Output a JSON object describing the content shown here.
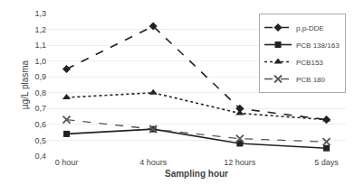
{
  "chart_data": {
    "type": "line",
    "categories": [
      "0 hour",
      "4 hours",
      "12 hours",
      "5 days"
    ],
    "series": [
      {
        "name": "p,p-DDE",
        "values": [
          0.95,
          1.22,
          0.7,
          0.63
        ],
        "color": "#222222",
        "marker": "diamond",
        "line_style": "dash"
      },
      {
        "name": "PCB 138/163",
        "values": [
          0.54,
          0.57,
          0.48,
          0.45
        ],
        "color": "#222222",
        "marker": "square",
        "line_style": "solid"
      },
      {
        "name": "PCB153",
        "values": [
          0.77,
          0.8,
          0.67,
          0.63
        ],
        "color": "#222222",
        "marker": "triangle-up",
        "line_style": "dot"
      },
      {
        "name": "PCB 180",
        "values": [
          0.63,
          0.57,
          0.51,
          0.49
        ],
        "color": "#555555",
        "marker": "x",
        "line_style": "dash"
      }
    ],
    "x_label": "Sampling hour",
    "y_label": "µg/L plasma",
    "ylim": [
      0.4,
      1.3
    ],
    "yticks": [
      {
        "value": 0.4,
        "label": "0,4"
      },
      {
        "value": 0.5,
        "label": "0,5"
      },
      {
        "value": 0.6,
        "label": "0,6"
      },
      {
        "value": 0.7,
        "label": "0,7"
      },
      {
        "value": 0.8,
        "label": "0,8"
      },
      {
        "value": 0.9,
        "label": "0,9"
      },
      {
        "value": 1.0,
        "label": "1,0"
      },
      {
        "value": 1.1,
        "label": "1,1"
      },
      {
        "value": 1.2,
        "label": "1,2"
      },
      {
        "value": 1.3,
        "label": "1,3"
      }
    ],
    "grid": true,
    "legend": "upper right"
  }
}
